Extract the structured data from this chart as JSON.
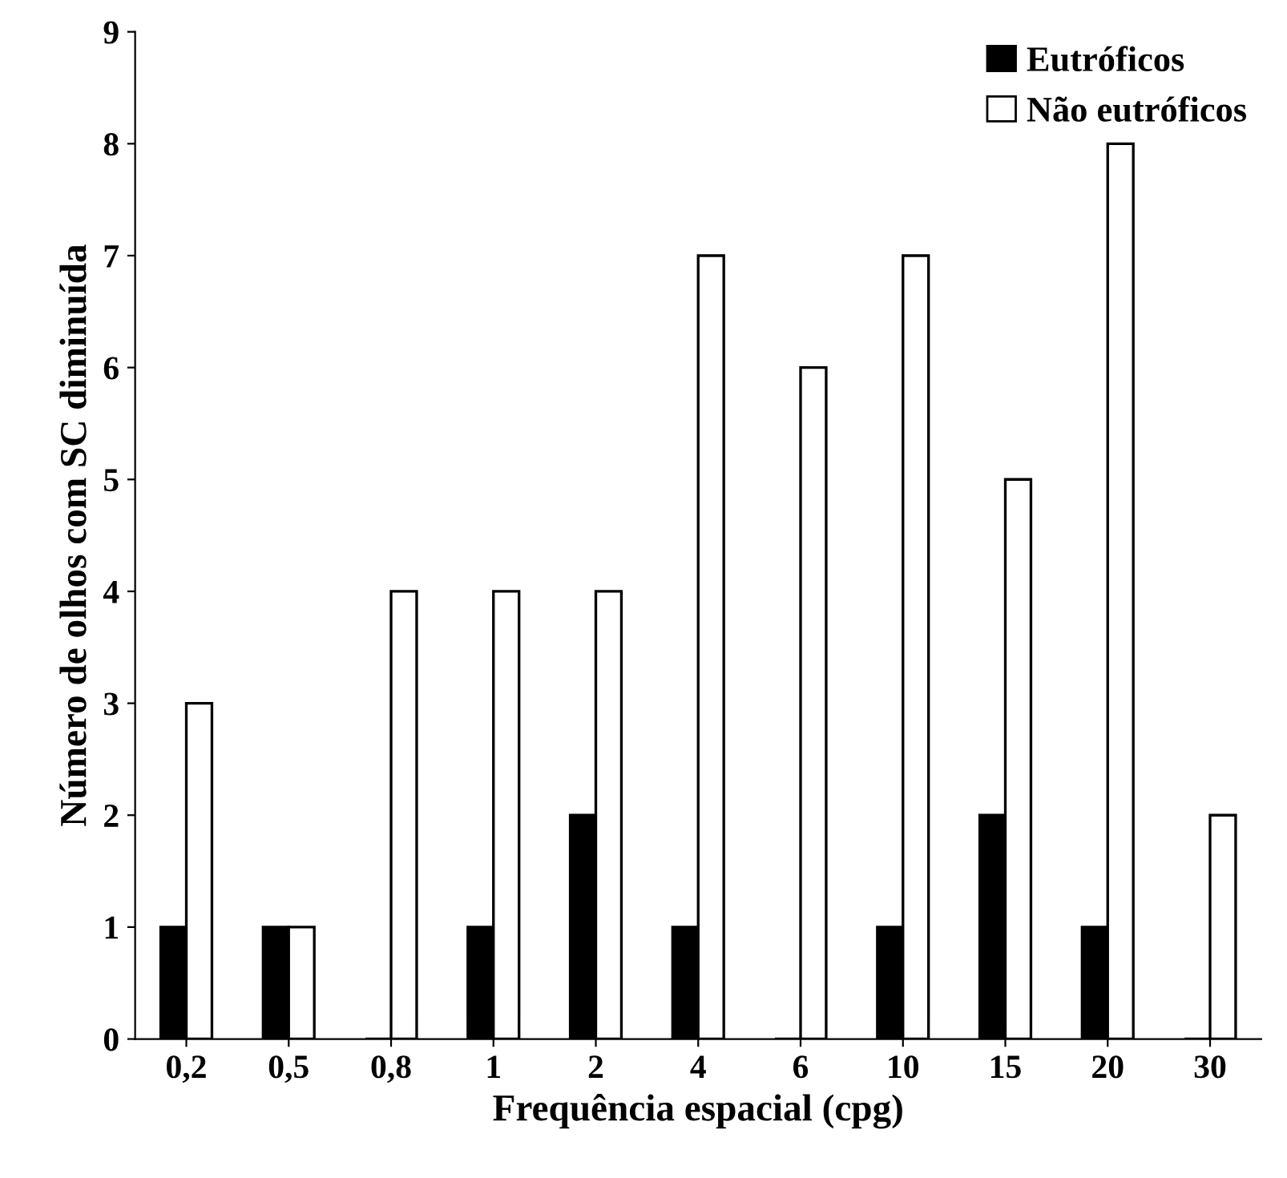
{
  "chart_data": {
    "type": "bar",
    "xlabel": "Frequência espacial (cpg)",
    "ylabel": "Número de olhos com SC diminuída",
    "categories": [
      "0,2",
      "0,5",
      "0,8",
      "1",
      "2",
      "4",
      "6",
      "10",
      "15",
      "20",
      "30"
    ],
    "series": [
      {
        "name": "Eutróficos",
        "color": "#000000",
        "values": [
          1,
          1,
          0,
          1,
          2,
          1,
          0,
          1,
          2,
          1,
          0
        ]
      },
      {
        "name": "Não eutróficos",
        "color": "#ffffff",
        "values": [
          3,
          1,
          4,
          4,
          4,
          7,
          6,
          7,
          5,
          8,
          2
        ]
      }
    ],
    "ylim": [
      0,
      9
    ],
    "yticks": [
      0,
      1,
      2,
      3,
      4,
      5,
      6,
      7,
      8,
      9
    ],
    "grid": false,
    "legend": "top right"
  }
}
